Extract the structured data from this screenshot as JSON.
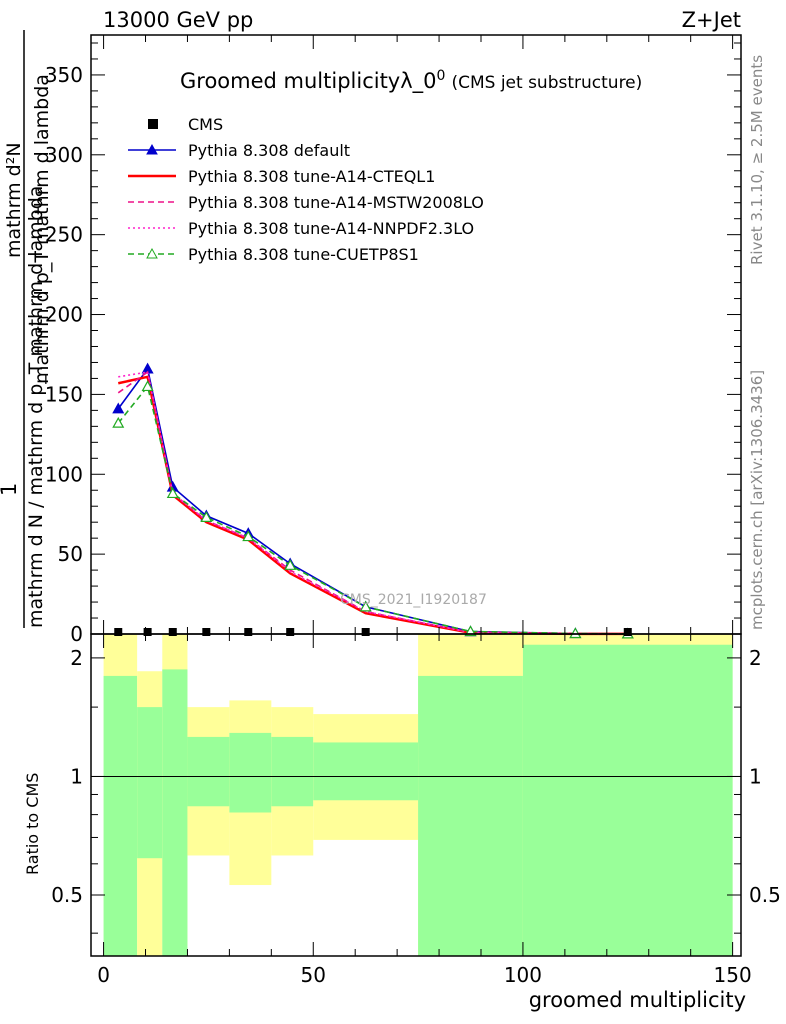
{
  "header": {
    "left": "13000 GeV pp",
    "right": "Z+Jet",
    "title": "Groomed multiplicityλ_0",
    "title_sup": "0",
    "title_suffix": "(CMS jet substructure)"
  },
  "side_labels": {
    "rivet": "Rivet 3.1.10, ≥ 2.5M events",
    "mcplots": "mcplots.cern.ch [arXiv:1306.3436]"
  },
  "watermark": "CMS_2021_I1920187",
  "ratio_ylabel": "Ratio to CMS",
  "chart_data": {
    "type": "line",
    "xlabel": "groomed multiplicity",
    "ylabel_top": "1",
    "ylabel_bottom": "mathrm d N / mathrm d p_T mathrm d lambda",
    "ylabel_top_line2": "mathrm d²N",
    "ylabel_top_line3": "mathrm d p_T mathrm d lambda",
    "xlim": [
      -3,
      152
    ],
    "ylim": [
      0,
      375
    ],
    "xticks": [
      0,
      50,
      100,
      150
    ],
    "yticks": [
      0,
      50,
      100,
      150,
      200,
      250,
      300,
      350
    ],
    "ratio_ylim": [
      0.35,
      2.3
    ],
    "ratio_yticks": [
      0.5,
      1,
      2
    ],
    "x": [
      3.5,
      10.5,
      16.5,
      24.5,
      34.5,
      44.5,
      62.5,
      87.5,
      112.5,
      125
    ],
    "cms": {
      "name": "CMS",
      "x": [
        3.5,
        10.5,
        16.5,
        24.5,
        34.5,
        44.5,
        62.5,
        125
      ],
      "values": [
        0,
        0,
        0,
        0,
        0,
        0,
        0,
        0
      ]
    },
    "series": [
      {
        "name": "Pythia 8.308 default",
        "color": "#0000cc",
        "style": "solid-triangle",
        "values": [
          141,
          166,
          92,
          74,
          63,
          44,
          17,
          1.5,
          0.3,
          0.1
        ]
      },
      {
        "name": "Pythia 8.308 tune-A14-CTEQL1",
        "color": "#ff0000",
        "style": "solid",
        "values": [
          157,
          161,
          87,
          70,
          59,
          38,
          13,
          0.8,
          0.1,
          0.05
        ]
      },
      {
        "name": "Pythia 8.308 tune-A14-MSTW2008LO",
        "color": "#ee1188",
        "style": "dashed",
        "values": [
          151,
          164,
          88,
          71,
          60,
          40,
          14,
          1.0,
          0.2,
          0.05
        ]
      },
      {
        "name": "Pythia 8.308 tune-A14-NNPDF2.3LO",
        "color": "#ff22cc",
        "style": "dotted",
        "values": [
          161,
          164,
          88,
          71,
          60,
          39,
          14,
          1.0,
          0.2,
          0.05
        ]
      },
      {
        "name": "Pythia 8.308 tune-CUETP8S1",
        "color": "#22aa22",
        "style": "dashed-open-triangle",
        "values": [
          132,
          155,
          88,
          73,
          61,
          43,
          17,
          1.6,
          0.3,
          0.1
        ]
      }
    ],
    "ratio_bands": [
      {
        "x0": 0,
        "x1": 8,
        "yellow_lo": 0.35,
        "yellow_hi": 2.3,
        "green_lo": 0.35,
        "green_hi": 1.8
      },
      {
        "x0": 8,
        "x1": 14,
        "yellow_lo": 0.35,
        "yellow_hi": 1.85,
        "green_lo": 0.62,
        "green_hi": 1.5
      },
      {
        "x0": 14,
        "x1": 20,
        "yellow_lo": 0.35,
        "yellow_hi": 2.3,
        "green_lo": 0.35,
        "green_hi": 1.87
      },
      {
        "x0": 20,
        "x1": 30,
        "yellow_lo": 0.63,
        "yellow_hi": 1.5,
        "green_lo": 0.84,
        "green_hi": 1.26
      },
      {
        "x0": 30,
        "x1": 40,
        "yellow_lo": 0.53,
        "yellow_hi": 1.56,
        "green_lo": 0.81,
        "green_hi": 1.29
      },
      {
        "x0": 40,
        "x1": 50,
        "yellow_lo": 0.63,
        "yellow_hi": 1.5,
        "green_lo": 0.84,
        "green_hi": 1.26
      },
      {
        "x0": 50,
        "x1": 75,
        "yellow_lo": 0.69,
        "yellow_hi": 1.44,
        "green_lo": 0.87,
        "green_hi": 1.22
      },
      {
        "x0": 75,
        "x1": 100,
        "yellow_lo": 0.35,
        "yellow_hi": 2.3,
        "green_lo": 0.35,
        "green_hi": 1.8
      },
      {
        "x0": 100,
        "x1": 150,
        "yellow_lo": 0.35,
        "yellow_hi": 2.3,
        "green_lo": 0.35,
        "green_hi": 2.16
      }
    ]
  }
}
